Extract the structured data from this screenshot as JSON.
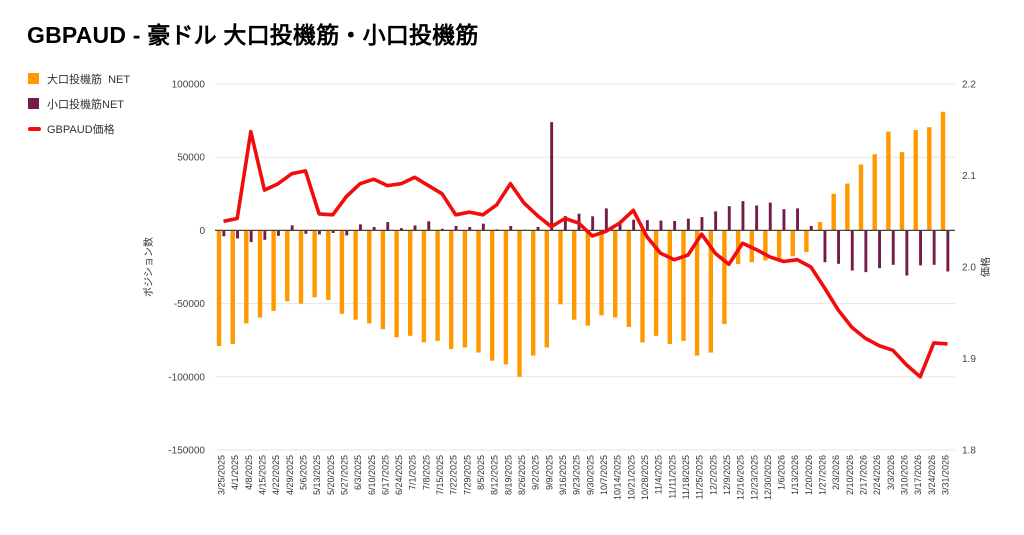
{
  "title": "GBPAUD - 豪ドル 大口投機筋・小口投機筋",
  "legend": {
    "items": [
      {
        "label": "大口投機筋  NET",
        "marker": "square",
        "color": "#ff9900"
      },
      {
        "label": "小口投機筋NET",
        "marker": "square",
        "color": "#741b47"
      },
      {
        "label": "GBPAUD価格",
        "marker": "line",
        "color": "#f20d0d"
      }
    ]
  },
  "chart_data": {
    "type": "combo",
    "categories": [
      "3/25/2025",
      "4/1/2025",
      "4/8/2025",
      "4/15/2025",
      "4/22/2025",
      "4/29/2025",
      "5/6/2025",
      "5/13/2025",
      "5/20/2025",
      "5/27/2025",
      "6/3/2025",
      "6/10/2025",
      "6/17/2025",
      "6/24/2025",
      "7/1/2025",
      "7/8/2025",
      "7/15/2025",
      "7/22/2025",
      "7/29/2025",
      "8/5/2025",
      "8/12/2025",
      "8/19/2025",
      "8/26/2025",
      "9/2/2025",
      "9/9/2025",
      "9/16/2025",
      "9/23/2025",
      "9/30/2025",
      "10/7/2025",
      "10/14/2025",
      "10/21/2025",
      "10/28/2025",
      "11/4/2025",
      "11/11/2025",
      "11/18/2025",
      "11/25/2025",
      "12/2/2025",
      "12/9/2025",
      "12/16/2025",
      "12/23/2025",
      "12/30/2025",
      "1/6/2026",
      "1/13/2026",
      "1/20/2026",
      "1/27/2026",
      "2/3/2026",
      "2/10/2026",
      "2/17/2026",
      "2/24/2026",
      "3/3/2026",
      "3/10/2026",
      "3/17/2026",
      "3/24/2026",
      "3/31/2026"
    ],
    "series": [
      {
        "name": "大口投機筋 NET",
        "type": "bar",
        "axis": "left",
        "color": "#ff9900",
        "values": [
          -79000,
          -77500,
          -63500,
          -59500,
          -55000,
          -48500,
          -50000,
          -45700,
          -47500,
          -57000,
          -61000,
          -63500,
          -67500,
          -73000,
          -72000,
          -76500,
          -75500,
          -81000,
          -80000,
          -83500,
          -89000,
          -91500,
          -100000,
          -85500,
          -80000,
          -50500,
          -61000,
          -65000,
          -58000,
          -59500,
          -66000,
          -76500,
          -72000,
          -77500,
          -75500,
          -85500,
          -83500,
          -64000,
          -23000,
          -21700,
          -20500,
          -19500,
          -17600,
          -14800,
          5700,
          25000,
          32000,
          45000,
          52000,
          67500,
          53500,
          68500,
          70500,
          81000
        ]
      },
      {
        "name": "小口投機筋NET",
        "type": "bar",
        "axis": "left",
        "color": "#741b47",
        "values": [
          -4000,
          -5500,
          -8000,
          -6400,
          -3700,
          3400,
          -2300,
          -2700,
          -1800,
          -3400,
          4100,
          2300,
          5700,
          1600,
          3400,
          6200,
          1100,
          3000,
          2300,
          4600,
          700,
          3000,
          500,
          2300,
          74000,
          9800,
          11400,
          9600,
          15000,
          4600,
          7300,
          7000,
          6700,
          6400,
          8000,
          9100,
          13000,
          16500,
          20000,
          17000,
          19000,
          14500,
          15000,
          3000,
          -21700,
          -22800,
          -27400,
          -28500,
          -25800,
          -23500,
          -30800,
          -23900,
          -23500,
          -28100
        ]
      },
      {
        "name": "GBPAUD価格",
        "type": "line",
        "axis": "right",
        "color": "#f20d0d",
        "values": [
          2.05,
          2.053,
          2.148,
          2.084,
          2.091,
          2.102,
          2.105,
          2.058,
          2.057,
          2.077,
          2.091,
          2.096,
          2.089,
          2.091,
          2.098,
          2.089,
          2.08,
          2.057,
          2.06,
          2.057,
          2.068,
          2.091,
          2.07,
          2.056,
          2.044,
          2.053,
          2.048,
          2.034,
          2.039,
          2.048,
          2.062,
          2.033,
          2.015,
          2.008,
          2.013,
          2.036,
          2.015,
          2.003,
          2.026,
          2.019,
          2.011,
          2.006,
          2.008,
          2.0,
          1.977,
          1.953,
          1.934,
          1.922,
          1.914,
          1.909,
          1.893,
          1.88,
          1.917,
          1.916
        ]
      }
    ],
    "left_axis": {
      "title": "ポジション数",
      "min": -150000,
      "max": 100000,
      "ticks": [
        100000,
        50000,
        0,
        -50000,
        -100000,
        -150000
      ]
    },
    "right_axis": {
      "title": "価格",
      "min": 1.8,
      "max": 2.2,
      "tick_labels": [
        "2.2",
        "2.1",
        "2.0",
        "1.9",
        "1.8"
      ]
    },
    "grid": {
      "line_color": "#e6e6e6",
      "zero_line_color": "#424242",
      "tick_text_color": "#444444",
      "x_label_color": "#333333"
    },
    "legend_position": "top-left"
  }
}
